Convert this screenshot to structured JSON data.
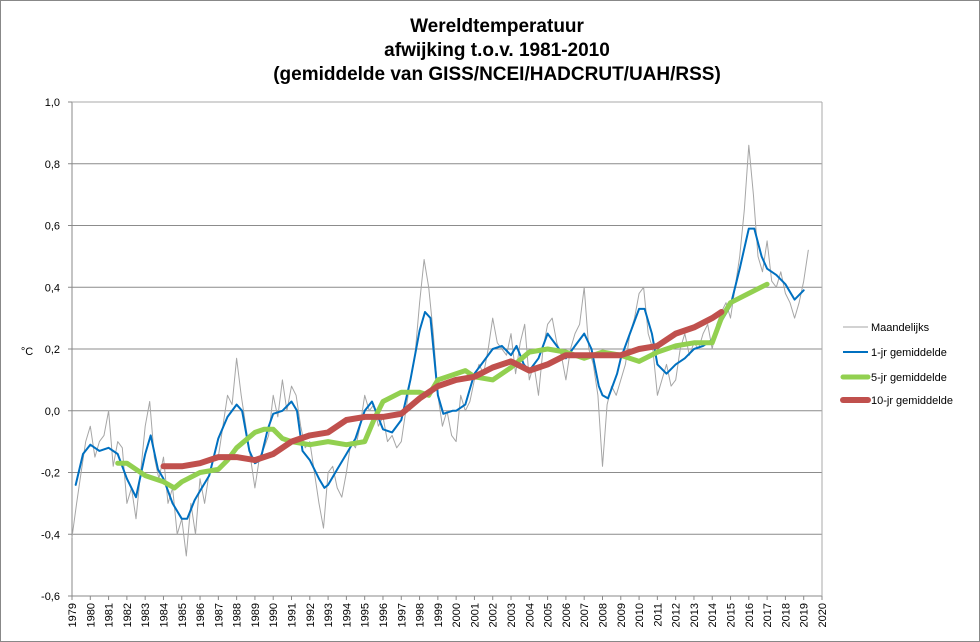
{
  "chart_data": {
    "type": "line",
    "title": [
      "Wereldtemperatuur",
      "afwijking t.o.v. 1981-2010",
      "(gemiddelde van GISS/NCEI/HADCRUT/UAH/RSS)"
    ],
    "xlabel": "",
    "ylabel": "°C",
    "xlim": [
      1979,
      2020
    ],
    "ylim": [
      -0.6,
      1.0
    ],
    "yticks": [
      -0.6,
      -0.4,
      -0.2,
      0.0,
      0.2,
      0.4,
      0.6,
      0.8,
      1.0
    ],
    "ytick_labels": [
      "-0,6",
      "-0,4",
      "-0,2",
      "0,0",
      "0,2",
      "0,4",
      "0,6",
      "0,8",
      "1,0"
    ],
    "xtick_labels": [
      "1979",
      "1980",
      "1981",
      "1982",
      "1983",
      "1984",
      "1985",
      "1986",
      "1987",
      "1988",
      "1989",
      "1990",
      "1991",
      "1992",
      "1993",
      "1994",
      "1995",
      "1996",
      "1997",
      "1998",
      "1999",
      "2000",
      "2001",
      "2002",
      "2003",
      "2004",
      "2005",
      "2006",
      "2007",
      "2008",
      "2009",
      "2010",
      "2011",
      "2012",
      "2013",
      "2014",
      "2015",
      "2016",
      "2017",
      "2018",
      "2019",
      "2020"
    ],
    "grid": true,
    "legend_position": "right",
    "series": [
      {
        "name": "Maandelijks",
        "color": "#a6a6a6",
        "start": 1979.0,
        "step": 0.25,
        "values": [
          -0.41,
          -0.3,
          -0.2,
          -0.1,
          -0.05,
          -0.15,
          -0.1,
          -0.08,
          0.0,
          -0.18,
          -0.1,
          -0.12,
          -0.3,
          -0.25,
          -0.35,
          -0.2,
          -0.05,
          0.03,
          -0.15,
          -0.22,
          -0.15,
          -0.3,
          -0.25,
          -0.4,
          -0.35,
          -0.47,
          -0.3,
          -0.4,
          -0.22,
          -0.3,
          -0.2,
          -0.15,
          -0.15,
          -0.05,
          0.05,
          0.02,
          0.17,
          0.05,
          -0.05,
          -0.15,
          -0.25,
          -0.15,
          -0.12,
          -0.08,
          0.05,
          -0.02,
          0.1,
          0.0,
          0.08,
          0.05,
          -0.05,
          -0.12,
          -0.1,
          -0.2,
          -0.3,
          -0.38,
          -0.2,
          -0.18,
          -0.25,
          -0.28,
          -0.2,
          -0.1,
          -0.12,
          -0.05,
          0.05,
          0.0,
          0.02,
          -0.05,
          -0.02,
          -0.1,
          -0.08,
          -0.12,
          -0.1,
          0.0,
          0.1,
          0.18,
          0.35,
          0.49,
          0.4,
          0.25,
          0.05,
          -0.05,
          0.0,
          -0.08,
          -0.1,
          0.05,
          0.0,
          0.03,
          0.1,
          0.15,
          0.12,
          0.2,
          0.3,
          0.22,
          0.2,
          0.18,
          0.25,
          0.12,
          0.22,
          0.28,
          0.1,
          0.15,
          0.05,
          0.2,
          0.28,
          0.3,
          0.22,
          0.18,
          0.1,
          0.2,
          0.25,
          0.28,
          0.4,
          0.2,
          0.15,
          0.05,
          -0.18,
          0.02,
          0.08,
          0.05,
          0.1,
          0.15,
          0.25,
          0.3,
          0.38,
          0.4,
          0.25,
          0.2,
          0.05,
          0.1,
          0.15,
          0.08,
          0.1,
          0.2,
          0.25,
          0.18,
          0.22,
          0.2,
          0.25,
          0.28,
          0.2,
          0.28,
          0.32,
          0.35,
          0.3,
          0.4,
          0.5,
          0.65,
          0.86,
          0.7,
          0.5,
          0.45,
          0.55,
          0.42,
          0.4,
          0.45,
          0.38,
          0.35,
          0.3,
          0.35,
          0.42,
          0.52
        ]
      },
      {
        "name": "1-jr gemiddelde",
        "color": "#0070c0",
        "x": [
          1979.2,
          1979.6,
          1980,
          1980.5,
          1981,
          1981.5,
          1982,
          1982.5,
          1983,
          1983.3,
          1983.7,
          1984,
          1984.5,
          1985,
          1985.3,
          1985.7,
          1986,
          1986.5,
          1987,
          1987.5,
          1988,
          1988.3,
          1988.7,
          1989,
          1989.3,
          1989.7,
          1990,
          1990.5,
          1991,
          1991.3,
          1991.6,
          1992,
          1992.5,
          1992.8,
          1993,
          1993.5,
          1994,
          1994.5,
          1995,
          1995.4,
          1995.8,
          1996,
          1996.5,
          1997,
          1997.5,
          1998,
          1998.3,
          1998.6,
          1999,
          1999.3,
          1999.8,
          2000,
          2000.5,
          2001,
          2001.5,
          2002,
          2002.5,
          2003,
          2003.3,
          2003.7,
          2004,
          2004.5,
          2005,
          2005.5,
          2006,
          2006.5,
          2007,
          2007.4,
          2007.8,
          2008,
          2008.3,
          2008.8,
          2009,
          2009.5,
          2010,
          2010.3,
          2010.7,
          2011,
          2011.5,
          2012,
          2012.5,
          2013,
          2013.5,
          2014,
          2014.5,
          2015,
          2015.5,
          2016,
          2016.3,
          2016.7,
          2017,
          2017.5,
          2018,
          2018.5,
          2019
        ],
        "values": [
          -0.24,
          -0.14,
          -0.11,
          -0.13,
          -0.12,
          -0.14,
          -0.22,
          -0.28,
          -0.14,
          -0.08,
          -0.19,
          -0.22,
          -0.3,
          -0.35,
          -0.35,
          -0.29,
          -0.26,
          -0.21,
          -0.09,
          -0.02,
          0.02,
          0.0,
          -0.13,
          -0.17,
          -0.16,
          -0.06,
          -0.01,
          0.0,
          0.03,
          0.0,
          -0.13,
          -0.16,
          -0.22,
          -0.25,
          -0.24,
          -0.19,
          -0.14,
          -0.09,
          0.0,
          0.03,
          -0.03,
          -0.06,
          -0.07,
          -0.03,
          0.1,
          0.26,
          0.32,
          0.3,
          0.05,
          -0.01,
          0.0,
          0.0,
          0.02,
          0.12,
          0.16,
          0.2,
          0.21,
          0.18,
          0.21,
          0.15,
          0.13,
          0.17,
          0.25,
          0.21,
          0.17,
          0.21,
          0.25,
          0.2,
          0.08,
          0.05,
          0.04,
          0.12,
          0.17,
          0.25,
          0.33,
          0.33,
          0.25,
          0.15,
          0.12,
          0.15,
          0.17,
          0.2,
          0.21,
          0.23,
          0.29,
          0.34,
          0.46,
          0.59,
          0.59,
          0.5,
          0.46,
          0.44,
          0.41,
          0.36,
          0.39
        ]
      },
      {
        "name": "5-jr gemiddelde",
        "color": "#92d050",
        "x": [
          1981.5,
          1982,
          1983,
          1984,
          1984.6,
          1985,
          1986,
          1987,
          1987.5,
          1988,
          1989,
          1989.5,
          1990,
          1990.5,
          1991,
          1992,
          1993,
          1994,
          1995,
          1995.5,
          1996,
          1997,
          1998,
          1998.5,
          1999,
          2000,
          2000.5,
          2001,
          2002,
          2003,
          2004,
          2005,
          2006,
          2007,
          2008,
          2009,
          2010,
          2011,
          2012,
          2013,
          2014,
          2014.5,
          2015,
          2016,
          2017
        ],
        "values": [
          -0.17,
          -0.17,
          -0.21,
          -0.23,
          -0.25,
          -0.23,
          -0.2,
          -0.19,
          -0.16,
          -0.12,
          -0.07,
          -0.06,
          -0.06,
          -0.09,
          -0.1,
          -0.11,
          -0.1,
          -0.11,
          -0.1,
          -0.03,
          0.03,
          0.06,
          0.06,
          0.05,
          0.1,
          0.12,
          0.13,
          0.11,
          0.1,
          0.14,
          0.19,
          0.2,
          0.19,
          0.17,
          0.19,
          0.18,
          0.16,
          0.19,
          0.21,
          0.22,
          0.22,
          0.3,
          0.35,
          0.38,
          0.41
        ]
      },
      {
        "name": "10-jr gemiddelde",
        "color": "#c0504d",
        "x": [
          1984,
          1985,
          1986,
          1987,
          1988,
          1989,
          1990,
          1991,
          1992,
          1993,
          1994,
          1995,
          1996,
          1997,
          1998,
          1999,
          2000,
          2001,
          2002,
          2003,
          2004,
          2005,
          2006,
          2007,
          2008,
          2009,
          2010,
          2011,
          2012,
          2013,
          2014,
          2014.5
        ],
        "values": [
          -0.18,
          -0.18,
          -0.17,
          -0.15,
          -0.15,
          -0.16,
          -0.14,
          -0.1,
          -0.08,
          -0.07,
          -0.03,
          -0.02,
          -0.02,
          -0.01,
          0.04,
          0.08,
          0.1,
          0.11,
          0.14,
          0.16,
          0.13,
          0.15,
          0.18,
          0.18,
          0.18,
          0.18,
          0.2,
          0.21,
          0.25,
          0.27,
          0.3,
          0.32
        ]
      }
    ]
  }
}
